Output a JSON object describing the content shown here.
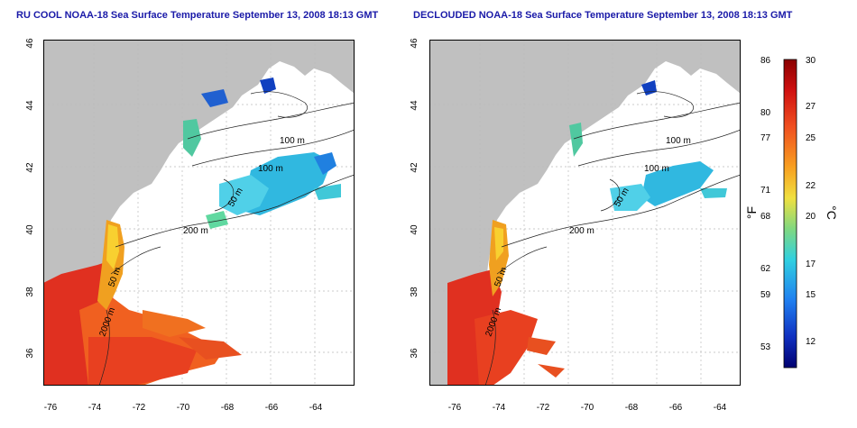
{
  "titles": {
    "left": "RU COOL NOAA-18 Sea Surface Temperature September 13, 2008 18:13 GMT",
    "right": "DECLOUDED NOAA-18 Sea Surface Temperature September 13, 2008 18:13 GMT"
  },
  "axes": {
    "x_ticks": [
      "-76",
      "-74",
      "-72",
      "-70",
      "-68",
      "-66",
      "-64"
    ],
    "y_ticks": [
      "36",
      "38",
      "40",
      "42",
      "44",
      "46"
    ],
    "lon_range": [
      -77.0,
      -63.0
    ],
    "lat_range": [
      35.0,
      46.0
    ]
  },
  "contour_labels": {
    "left": [
      "100 m",
      "100 m",
      "50 m",
      "200 m",
      "50 m",
      "2000 m"
    ],
    "right": [
      "100 m",
      "100 m",
      "50 m",
      "200 m",
      "50 m",
      "2000 m"
    ]
  },
  "colorbar": {
    "fahrenheit_ticks": [
      "86",
      "80",
      "77",
      "71",
      "68",
      "62",
      "59",
      "53"
    ],
    "celsius_ticks": [
      "30",
      "27",
      "25",
      "22",
      "20",
      "17",
      "15",
      "12"
    ],
    "fahrenheit_unit": "°F",
    "celsius_unit": "°C",
    "range_c": [
      10,
      30
    ]
  },
  "colors": {
    "land": "#c0c0c0",
    "title": "#1a1aa8",
    "warm": "#d8301c",
    "cool": "#3cc8e0",
    "cold": "#1e50dc"
  }
}
